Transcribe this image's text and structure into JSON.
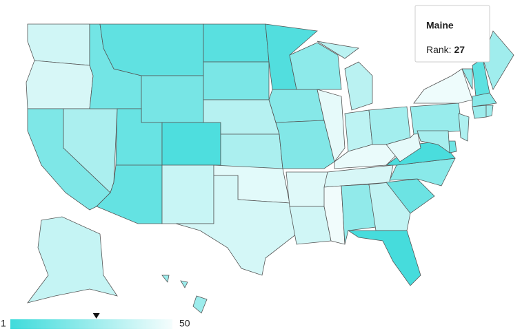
{
  "chart_data": {
    "type": "choropleth",
    "values": [
      40,
      42,
      18,
      30,
      15,
      10,
      16,
      12,
      11,
      5,
      38,
      8,
      17,
      33,
      30,
      45,
      41,
      6,
      20,
      19,
      44,
      40,
      22,
      46,
      34,
      35,
      28,
      47,
      42,
      49,
      23,
      36,
      3,
      13,
      21,
      4,
      46,
      25,
      48,
      24,
      9,
      27,
      20,
      26,
      27,
      31,
      14,
      29,
      37,
      26
    ],
    "clim": [
      1,
      50
    ],
    "colors": [
      "#3fdbdb",
      "#f5fdfd"
    ],
    "tooltip": {
      "title": "Maine",
      "label": "Rank:"
    }
  }
}
